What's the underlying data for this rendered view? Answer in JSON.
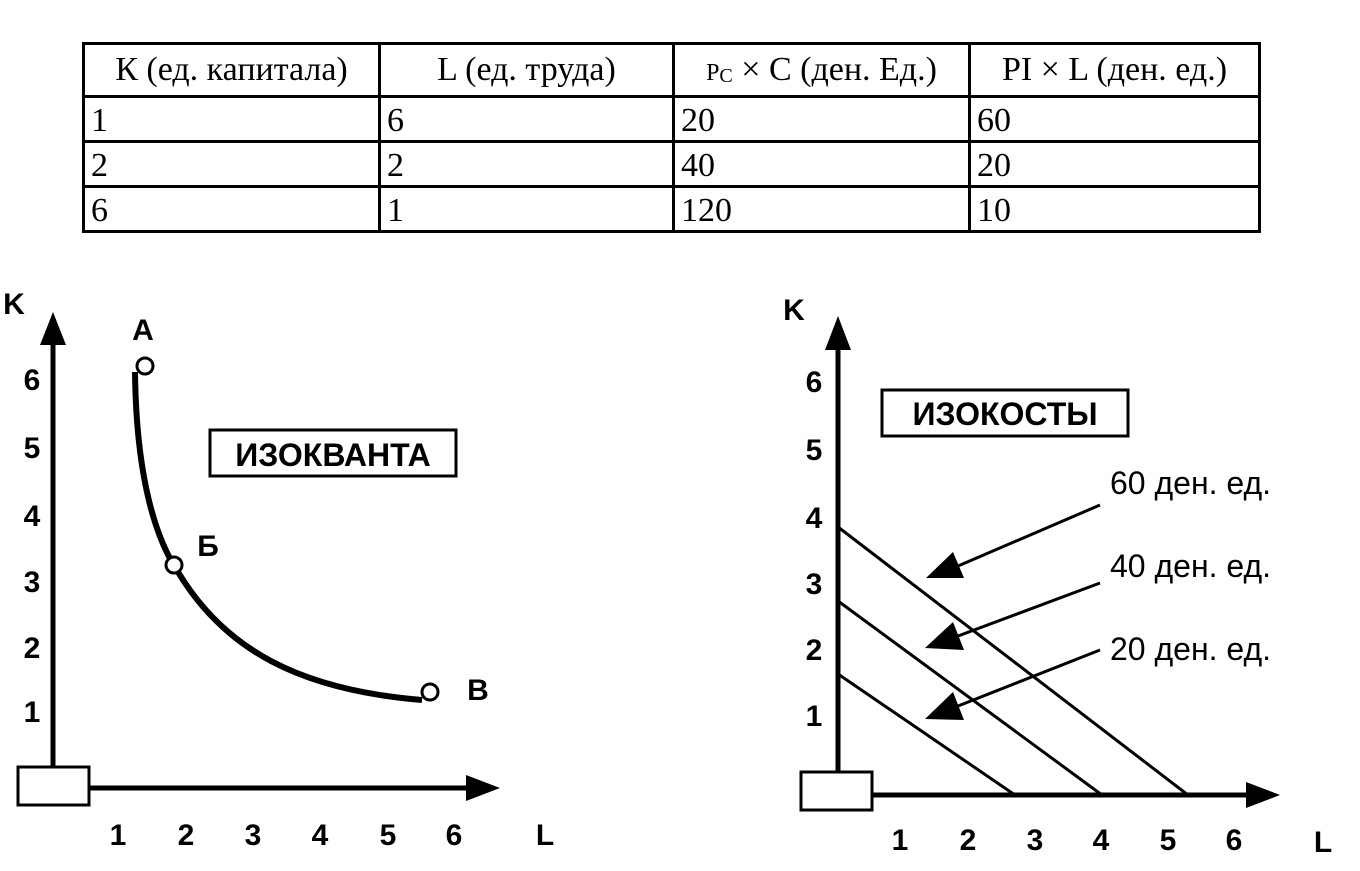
{
  "table": {
    "headers": [
      "К (ед. капитала)",
      "L (ед. труда)",
      "× С (ден. Ед.)",
      "РI × L (ден. ед.)"
    ],
    "header3_prefix": "P",
    "header3_sub": "C",
    "rows": [
      [
        "1",
        "6",
        "20",
        "60"
      ],
      [
        "2",
        "2",
        "40",
        "20"
      ],
      [
        "6",
        "1",
        "120",
        "10"
      ]
    ]
  },
  "left_figure": {
    "axis_y_label": "K",
    "axis_x_label": "L",
    "y_ticks": [
      "1",
      "2",
      "3",
      "4",
      "5",
      "6"
    ],
    "x_ticks": [
      "1",
      "2",
      "3",
      "4",
      "5",
      "6"
    ],
    "title": "ИЗОКВАНТА",
    "points": [
      {
        "label": "А",
        "L": 1.3,
        "K": 6.2
      },
      {
        "label": "Б",
        "L": 1.8,
        "K": 3.2
      },
      {
        "label": "В",
        "L": 5.7,
        "K": 1.2
      }
    ]
  },
  "right_figure": {
    "axis_y_label": "K",
    "axis_x_label": "L",
    "y_ticks": [
      "1",
      "2",
      "3",
      "4",
      "5",
      "6"
    ],
    "x_ticks": [
      "1",
      "2",
      "3",
      "4",
      "5",
      "6"
    ],
    "title": "ИЗОКОСТЫ",
    "lines": [
      {
        "label": "60 ден. ед.",
        "k_intercept": 3.9,
        "l_intercept": 5.3
      },
      {
        "label": "40 ден. ед.",
        "k_intercept": 2.8,
        "l_intercept": 4.0
      },
      {
        "label": "20 ден. ед.",
        "k_intercept": 1.7,
        "l_intercept": 2.6
      }
    ]
  }
}
